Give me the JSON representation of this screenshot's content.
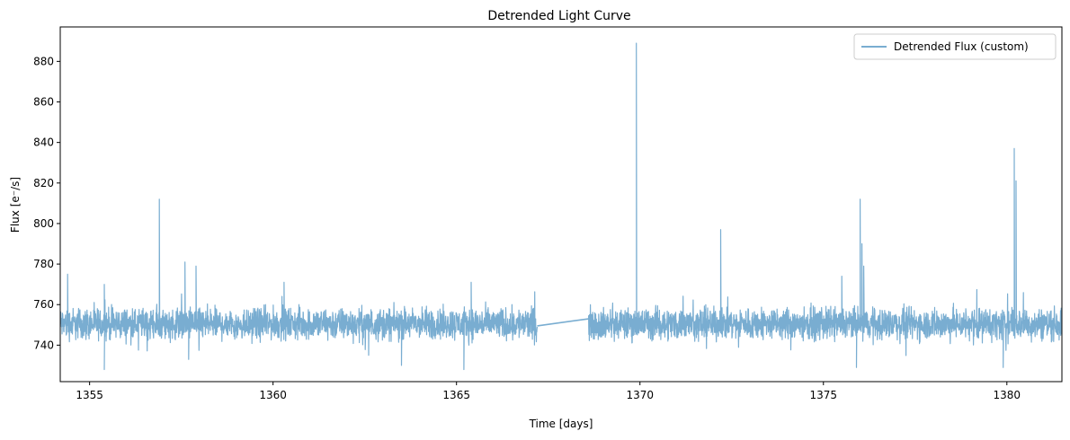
{
  "chart_data": {
    "type": "line",
    "title": "Detrended Light Curve",
    "xlabel": "Time [days]",
    "ylabel": "Flux [e⁻/s]",
    "xlim": [
      1354.2,
      1381.5
    ],
    "ylim": [
      722,
      897
    ],
    "xticks": [
      1355,
      1360,
      1365,
      1370,
      1375,
      1380
    ],
    "yticks": [
      740,
      760,
      780,
      800,
      820,
      840,
      860,
      880
    ],
    "xtick_labels": [
      "1355",
      "1360",
      "1365",
      "1370",
      "1375",
      "1380"
    ],
    "ytick_labels": [
      "740",
      "760",
      "780",
      "800",
      "820",
      "840",
      "860",
      "880"
    ],
    "grid": false,
    "legend_position": "top-right",
    "line_color": "#79add1",
    "series": [
      {
        "name": "Detrended Flux (custom)",
        "baseline": 749.5,
        "noise_band": [
          739,
          762
        ],
        "segments": [
          [
            1354.2,
            1367.2
          ],
          [
            1368.6,
            1381.5
          ]
        ],
        "gap_bridge": [
          [
            1367.2,
            749.5
          ],
          [
            1368.6,
            753
          ]
        ],
        "flares": [
          {
            "x": 1354.4,
            "y": 775
          },
          {
            "x": 1355.4,
            "y": 770
          },
          {
            "x": 1356.9,
            "y": 812
          },
          {
            "x": 1357.6,
            "y": 781
          },
          {
            "x": 1357.9,
            "y": 779
          },
          {
            "x": 1360.3,
            "y": 771
          },
          {
            "x": 1365.4,
            "y": 771
          },
          {
            "x": 1369.9,
            "y": 889
          },
          {
            "x": 1372.2,
            "y": 797
          },
          {
            "x": 1375.5,
            "y": 774
          },
          {
            "x": 1376.0,
            "y": 812
          },
          {
            "x": 1376.05,
            "y": 790
          },
          {
            "x": 1376.1,
            "y": 779
          },
          {
            "x": 1380.2,
            "y": 837
          },
          {
            "x": 1380.25,
            "y": 821
          }
        ],
        "dips": [
          {
            "x": 1355.4,
            "y": 728
          },
          {
            "x": 1357.7,
            "y": 733
          },
          {
            "x": 1363.5,
            "y": 730
          },
          {
            "x": 1365.2,
            "y": 728
          },
          {
            "x": 1375.9,
            "y": 729
          },
          {
            "x": 1379.9,
            "y": 729
          }
        ]
      }
    ]
  }
}
